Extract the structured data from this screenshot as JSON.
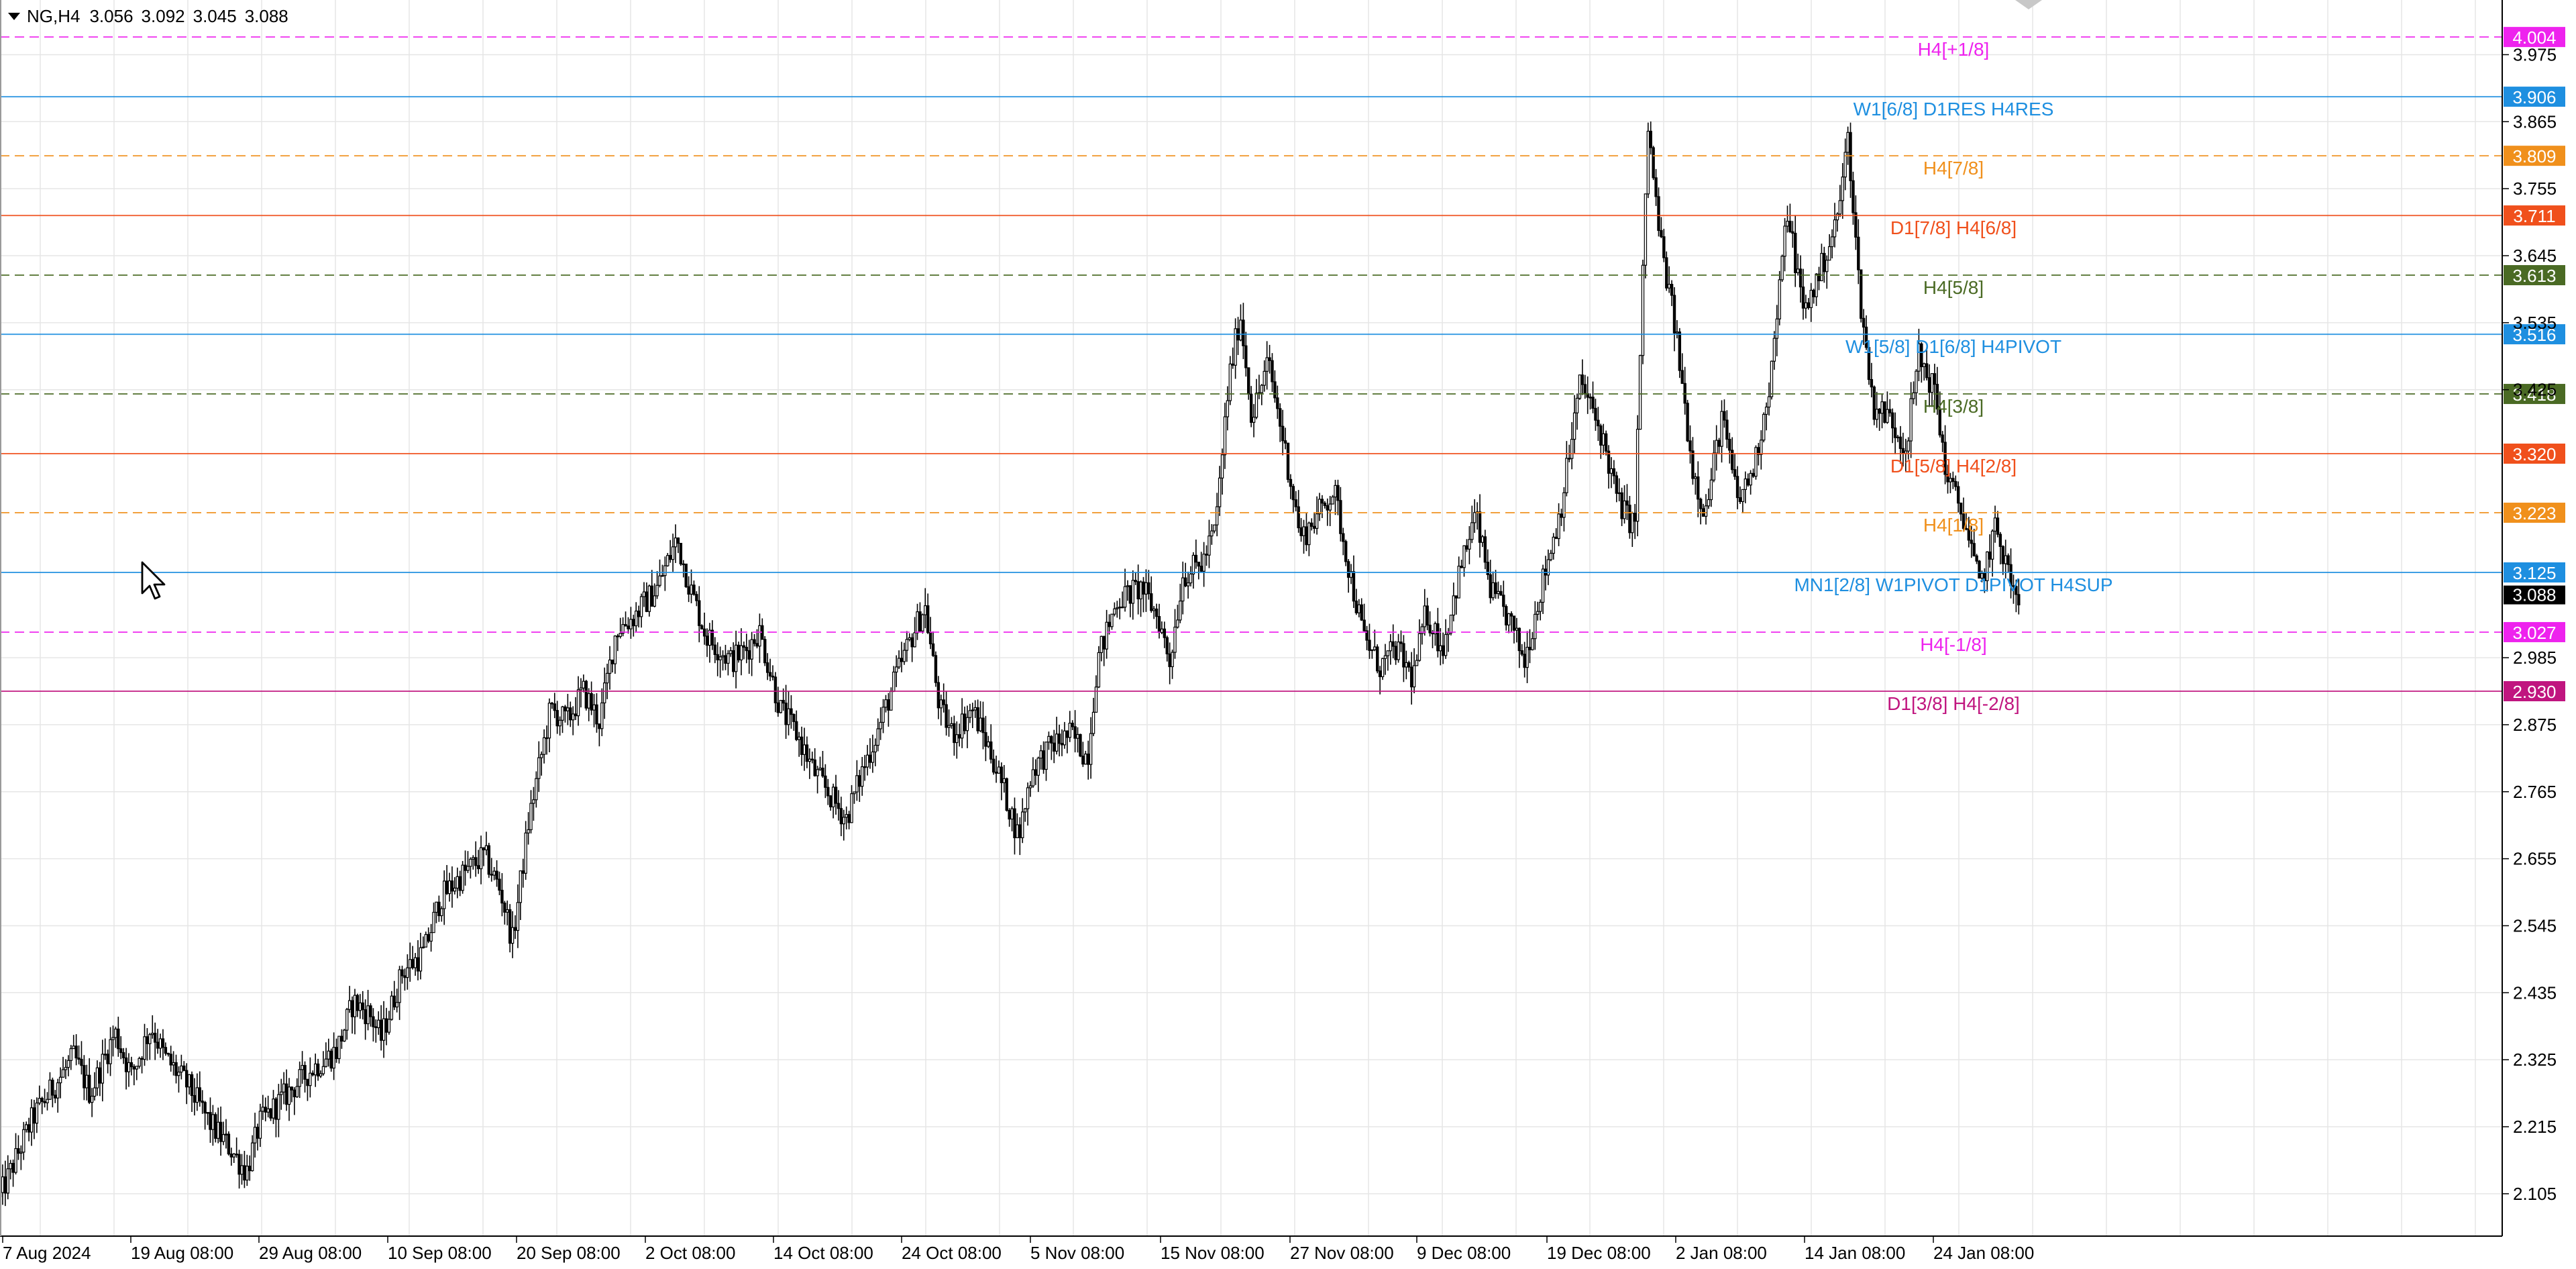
{
  "header": {
    "symbol": "NG,H4",
    "open": "3.056",
    "high": "3.092",
    "low": "3.045",
    "close": "3.088"
  },
  "colors": {
    "background": "#ffffff",
    "grid": "#e6e6e6",
    "candle": "#000000",
    "axis": "#000000"
  },
  "chart_data": {
    "type": "candlestick",
    "title": "",
    "xlabel": "",
    "ylabel": "",
    "timeframe": "H4",
    "ylim": [
      2.03,
      4.05
    ],
    "grid": true,
    "price_ticks": [
      "3.975",
      "3.865",
      "3.755",
      "3.645",
      "3.535",
      "3.425",
      "3.088",
      "2.985",
      "2.875",
      "2.765",
      "2.655",
      "2.545",
      "2.435",
      "2.325",
      "2.215",
      "2.105"
    ],
    "time_labels": [
      "7 Aug 2024",
      "19 Aug 08:00",
      "29 Aug 08:00",
      "10 Sep 08:00",
      "20 Sep 08:00",
      "2 Oct 08:00",
      "14 Oct 08:00",
      "24 Oct 08:00",
      "5 Nov 08:00",
      "15 Nov 08:00",
      "27 Nov 08:00",
      "9 Dec 08:00",
      "19 Dec 08:00",
      "2 Jan 08:00",
      "14 Jan 08:00",
      "24 Jan 08:00"
    ],
    "current_price": {
      "value": 3.088,
      "label": "3.088",
      "color": "#000000"
    },
    "levels": [
      {
        "price": 4.004,
        "label": "4.004",
        "text": "H4[+1/8]",
        "color": "#ee22ee",
        "style": "dashed"
      },
      {
        "price": 3.906,
        "label": "3.906",
        "text": "W1[6/8] D1RES H4RES",
        "color": "#1e8fe0",
        "style": "solid"
      },
      {
        "price": 3.809,
        "label": "3.809",
        "text": "H4[7/8]",
        "color": "#f0901c",
        "style": "dashed"
      },
      {
        "price": 3.711,
        "label": "3.711",
        "text": "D1[7/8] H4[6/8]",
        "color": "#f0501c",
        "style": "solid"
      },
      {
        "price": 3.613,
        "label": "3.613",
        "text": "H4[5/8]",
        "color": "#4a6a24",
        "style": "dashed"
      },
      {
        "price": 3.516,
        "label": "3.516",
        "text": "W1[5/8] D1[6/8] H4PIVOT",
        "color": "#1e8fe0",
        "style": "solid"
      },
      {
        "price": 3.418,
        "label": "3.418",
        "text": "H4[3/8]",
        "color": "#4a6a24",
        "style": "dashed"
      },
      {
        "price": 3.32,
        "label": "3.320",
        "text": "D1[5/8] H4[2/8]",
        "color": "#f0501c",
        "style": "solid"
      },
      {
        "price": 3.223,
        "label": "3.223",
        "text": "H4[1/8]",
        "color": "#f0901c",
        "style": "dashed"
      },
      {
        "price": 3.125,
        "label": "3.125",
        "text": "MN1[2/8] W1PIVOT D1PIVOT H4SUP",
        "color": "#1e8fe0",
        "style": "solid"
      },
      {
        "price": 3.027,
        "label": "3.027",
        "text": "H4[-1/8]",
        "color": "#ee22ee",
        "style": "dashed"
      },
      {
        "price": 2.93,
        "label": "2.930",
        "text": "D1[3/8] H4[-2/8]",
        "color": "#c0157f",
        "style": "solid"
      }
    ],
    "path": [
      [
        0,
        2.1
      ],
      [
        20,
        2.23
      ],
      [
        45,
        2.33
      ],
      [
        55,
        2.27
      ],
      [
        70,
        2.37
      ],
      [
        80,
        2.3
      ],
      [
        92,
        2.38
      ],
      [
        100,
        2.33
      ],
      [
        115,
        2.28
      ],
      [
        128,
        2.22
      ],
      [
        140,
        2.18
      ],
      [
        150,
        2.14
      ],
      [
        158,
        2.22
      ],
      [
        175,
        2.27
      ],
      [
        190,
        2.31
      ],
      [
        205,
        2.34
      ],
      [
        215,
        2.42
      ],
      [
        225,
        2.4
      ],
      [
        232,
        2.36
      ],
      [
        245,
        2.47
      ],
      [
        258,
        2.5
      ],
      [
        268,
        2.59
      ],
      [
        282,
        2.63
      ],
      [
        295,
        2.66
      ],
      [
        305,
        2.6
      ],
      [
        312,
        2.52
      ],
      [
        322,
        2.72
      ],
      [
        335,
        2.9
      ],
      [
        345,
        2.88
      ],
      [
        355,
        2.93
      ],
      [
        365,
        2.88
      ],
      [
        375,
        3.03
      ],
      [
        385,
        3.05
      ],
      [
        400,
        3.1
      ],
      [
        412,
        3.18
      ],
      [
        420,
        3.1
      ],
      [
        430,
        3.02
      ],
      [
        445,
        2.98
      ],
      [
        455,
        3.0
      ],
      [
        462,
        3.03
      ],
      [
        475,
        2.9
      ],
      [
        485,
        2.86
      ],
      [
        495,
        2.8
      ],
      [
        505,
        2.76
      ],
      [
        515,
        2.72
      ],
      [
        525,
        2.8
      ],
      [
        535,
        2.87
      ],
      [
        545,
        2.95
      ],
      [
        555,
        3.02
      ],
      [
        563,
        3.07
      ],
      [
        572,
        2.9
      ],
      [
        580,
        2.86
      ],
      [
        592,
        2.9
      ],
      [
        603,
        2.83
      ],
      [
        612,
        2.76
      ],
      [
        620,
        2.69
      ],
      [
        628,
        2.8
      ],
      [
        640,
        2.84
      ],
      [
        652,
        2.86
      ],
      [
        662,
        2.82
      ],
      [
        668,
        2.98
      ],
      [
        680,
        3.08
      ],
      [
        695,
        3.1
      ],
      [
        705,
        3.05
      ],
      [
        712,
        2.98
      ],
      [
        720,
        3.12
      ],
      [
        732,
        3.14
      ],
      [
        740,
        3.2
      ],
      [
        748,
        3.44
      ],
      [
        755,
        3.55
      ],
      [
        762,
        3.38
      ],
      [
        772,
        3.47
      ],
      [
        782,
        3.33
      ],
      [
        792,
        3.18
      ],
      [
        802,
        3.22
      ],
      [
        812,
        3.26
      ],
      [
        822,
        3.12
      ],
      [
        830,
        3.02
      ],
      [
        840,
        2.97
      ],
      [
        850,
        3.0
      ],
      [
        860,
        2.95
      ],
      [
        868,
        3.06
      ],
      [
        878,
        3.0
      ],
      [
        888,
        3.12
      ],
      [
        898,
        3.22
      ],
      [
        908,
        3.09
      ],
      [
        918,
        3.05
      ],
      [
        928,
        2.98
      ],
      [
        938,
        3.1
      ],
      [
        950,
        3.23
      ],
      [
        962,
        3.44
      ],
      [
        975,
        3.35
      ],
      [
        985,
        3.24
      ],
      [
        995,
        3.2
      ],
      [
        1003,
        3.86
      ],
      [
        1010,
        3.68
      ],
      [
        1020,
        3.52
      ],
      [
        1030,
        3.3
      ],
      [
        1038,
        3.22
      ],
      [
        1048,
        3.38
      ],
      [
        1058,
        3.24
      ],
      [
        1068,
        3.3
      ],
      [
        1078,
        3.45
      ],
      [
        1088,
        3.72
      ],
      [
        1098,
        3.55
      ],
      [
        1108,
        3.62
      ],
      [
        1118,
        3.7
      ],
      [
        1125,
        3.84
      ],
      [
        1132,
        3.58
      ],
      [
        1140,
        3.4
      ],
      [
        1150,
        3.38
      ],
      [
        1160,
        3.33
      ],
      [
        1168,
        3.48
      ],
      [
        1178,
        3.42
      ],
      [
        1185,
        3.28
      ],
      [
        1195,
        3.22
      ],
      [
        1205,
        3.1
      ],
      [
        1215,
        3.2
      ],
      [
        1222,
        3.13
      ],
      [
        1230,
        3.05
      ]
    ]
  }
}
